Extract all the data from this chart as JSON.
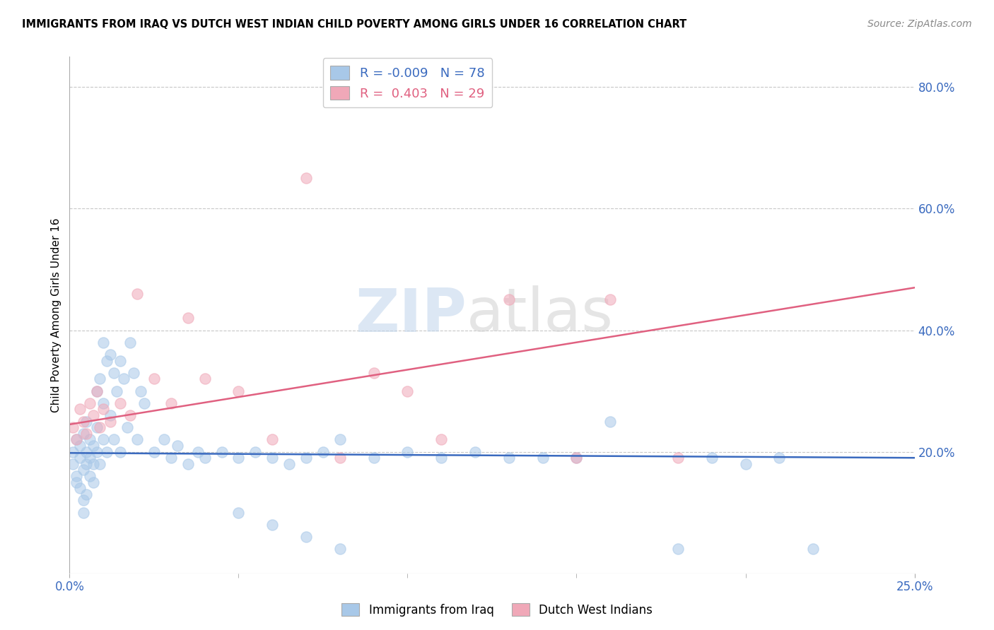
{
  "title": "IMMIGRANTS FROM IRAQ VS DUTCH WEST INDIAN CHILD POVERTY AMONG GIRLS UNDER 16 CORRELATION CHART",
  "source": "Source: ZipAtlas.com",
  "ylabel": "Child Poverty Among Girls Under 16",
  "xlim": [
    0.0,
    0.25
  ],
  "ylim": [
    0.0,
    0.85
  ],
  "xticks": [
    0.0,
    0.25
  ],
  "xticklabels": [
    "0.0%",
    "25.0%"
  ],
  "yticks_right": [
    0.2,
    0.4,
    0.6,
    0.8
  ],
  "ytick_right_labels": [
    "20.0%",
    "40.0%",
    "60.0%",
    "80.0%"
  ],
  "grid_color": "#c8c8c8",
  "background_color": "#ffffff",
  "blue_color": "#a8c8e8",
  "pink_color": "#f0a8b8",
  "blue_line_color": "#3a6abf",
  "pink_line_color": "#e06080",
  "legend_R_blue": "-0.009",
  "legend_N_blue": "78",
  "legend_R_pink": "0.403",
  "legend_N_pink": "29",
  "watermark_zip": "ZIP",
  "watermark_atlas": "atlas",
  "blue_scatter_x": [
    0.001,
    0.001,
    0.002,
    0.002,
    0.002,
    0.003,
    0.003,
    0.003,
    0.004,
    0.004,
    0.004,
    0.004,
    0.005,
    0.005,
    0.005,
    0.005,
    0.006,
    0.006,
    0.006,
    0.007,
    0.007,
    0.007,
    0.008,
    0.008,
    0.008,
    0.009,
    0.009,
    0.01,
    0.01,
    0.01,
    0.011,
    0.011,
    0.012,
    0.012,
    0.013,
    0.013,
    0.014,
    0.015,
    0.015,
    0.016,
    0.017,
    0.018,
    0.019,
    0.02,
    0.021,
    0.022,
    0.025,
    0.028,
    0.03,
    0.032,
    0.035,
    0.038,
    0.04,
    0.045,
    0.05,
    0.055,
    0.06,
    0.065,
    0.07,
    0.075,
    0.08,
    0.09,
    0.1,
    0.11,
    0.12,
    0.13,
    0.14,
    0.15,
    0.16,
    0.18,
    0.19,
    0.2,
    0.21,
    0.22,
    0.05,
    0.06,
    0.07,
    0.08
  ],
  "blue_scatter_y": [
    0.2,
    0.18,
    0.22,
    0.16,
    0.15,
    0.19,
    0.21,
    0.14,
    0.23,
    0.17,
    0.12,
    0.1,
    0.25,
    0.2,
    0.18,
    0.13,
    0.22,
    0.19,
    0.16,
    0.21,
    0.18,
    0.15,
    0.3,
    0.24,
    0.2,
    0.32,
    0.18,
    0.38,
    0.28,
    0.22,
    0.35,
    0.2,
    0.36,
    0.26,
    0.33,
    0.22,
    0.3,
    0.35,
    0.2,
    0.32,
    0.24,
    0.38,
    0.33,
    0.22,
    0.3,
    0.28,
    0.2,
    0.22,
    0.19,
    0.21,
    0.18,
    0.2,
    0.19,
    0.2,
    0.19,
    0.2,
    0.19,
    0.18,
    0.19,
    0.2,
    0.22,
    0.19,
    0.2,
    0.19,
    0.2,
    0.19,
    0.19,
    0.19,
    0.25,
    0.04,
    0.19,
    0.18,
    0.19,
    0.04,
    0.1,
    0.08,
    0.06,
    0.04
  ],
  "pink_scatter_x": [
    0.001,
    0.002,
    0.003,
    0.004,
    0.005,
    0.006,
    0.007,
    0.008,
    0.009,
    0.01,
    0.012,
    0.015,
    0.018,
    0.02,
    0.025,
    0.03,
    0.035,
    0.04,
    0.05,
    0.06,
    0.07,
    0.08,
    0.09,
    0.1,
    0.11,
    0.13,
    0.15,
    0.16,
    0.18
  ],
  "pink_scatter_y": [
    0.24,
    0.22,
    0.27,
    0.25,
    0.23,
    0.28,
    0.26,
    0.3,
    0.24,
    0.27,
    0.25,
    0.28,
    0.26,
    0.46,
    0.32,
    0.28,
    0.42,
    0.32,
    0.3,
    0.22,
    0.65,
    0.19,
    0.33,
    0.3,
    0.22,
    0.45,
    0.19,
    0.45,
    0.19
  ],
  "blue_trend_x": [
    0.0,
    0.25
  ],
  "blue_trend_y": [
    0.198,
    0.19
  ],
  "pink_trend_x": [
    0.0,
    0.25
  ],
  "pink_trend_y": [
    0.245,
    0.47
  ]
}
